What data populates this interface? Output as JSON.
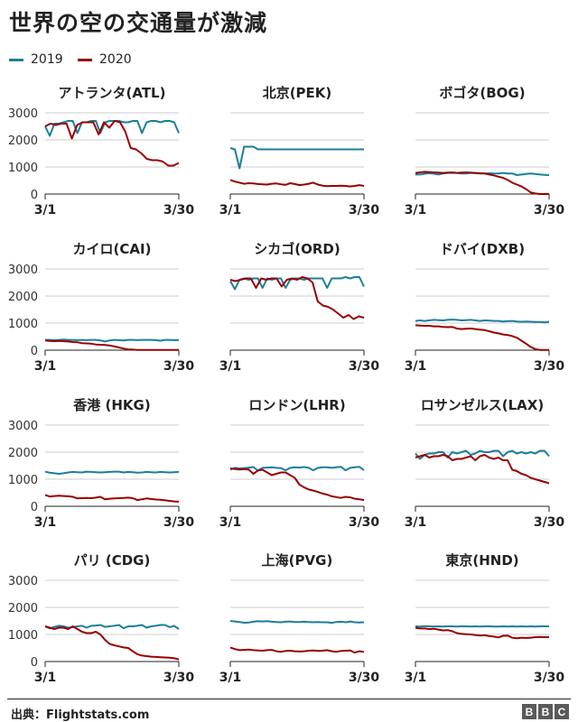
{
  "title": "世界の空の交通量が激減",
  "legend": [
    {
      "label": "2019",
      "color": "#1b7e9a"
    },
    {
      "label": "2020",
      "color": "#990000"
    }
  ],
  "footer": {
    "source": "出典：Flightstats.com",
    "logo": [
      "B",
      "B",
      "C"
    ]
  },
  "chart_data": [
    {
      "type": "line",
      "title": "アトランタ(ATL)",
      "x_labels": [
        "3/1",
        "3/30"
      ],
      "y_ticks": [
        0,
        1000,
        2000,
        3000
      ],
      "ylim": [
        0,
        3000
      ],
      "series": [
        {
          "name": "2019",
          "values": [
            2500,
            2150,
            2600,
            2600,
            2650,
            2700,
            2700,
            2250,
            2650,
            2650,
            2700,
            2700,
            2250,
            2650,
            2700,
            2700,
            2700,
            2650,
            2650,
            2700,
            2700,
            2250,
            2650,
            2700,
            2700,
            2650,
            2700,
            2700,
            2650,
            2250
          ]
        },
        {
          "name": "2020",
          "values": [
            2500,
            2600,
            2550,
            2600,
            2600,
            2050,
            2550,
            2650,
            2650,
            2650,
            2200,
            2650,
            2450,
            2700,
            2650,
            2300,
            1700,
            1650,
            1500,
            1300,
            1250,
            1250,
            1200,
            1050,
            1050,
            1150
          ]
        }
      ]
    },
    {
      "type": "line",
      "title": "北京(PEK)",
      "x_labels": [
        "3/1",
        "3/30"
      ],
      "y_ticks": [
        0,
        1000,
        2000,
        3000
      ],
      "ylim": [
        0,
        3000
      ],
      "series": [
        {
          "name": "2019",
          "values": [
            1700,
            1650,
            950,
            1750,
            1750,
            1750,
            1650,
            1650,
            1650,
            1650,
            1650,
            1650,
            1650,
            1650,
            1650,
            1650,
            1650,
            1650,
            1650,
            1650,
            1650,
            1650,
            1650,
            1650,
            1650,
            1650,
            1650,
            1650,
            1650,
            1650
          ]
        },
        {
          "name": "2020",
          "values": [
            520,
            460,
            420,
            380,
            400,
            390,
            370,
            360,
            350,
            380,
            390,
            360,
            340,
            400,
            370,
            330,
            350,
            380,
            420,
            350,
            310,
            290,
            300,
            300,
            310,
            300,
            280,
            300,
            330,
            300
          ]
        }
      ]
    },
    {
      "type": "line",
      "title": "ボゴタ(BOG)",
      "x_labels": [
        "3/1",
        "3/30"
      ],
      "y_ticks": [
        0,
        1000,
        2000,
        3000
      ],
      "ylim": [
        0,
        3000
      ],
      "series": [
        {
          "name": "2019",
          "values": [
            720,
            720,
            750,
            770,
            750,
            720,
            760,
            780,
            780,
            780,
            760,
            760,
            780,
            770,
            760,
            760,
            770,
            760,
            760,
            780,
            760,
            760,
            700,
            720,
            740,
            760,
            740,
            720,
            710,
            700
          ]
        },
        {
          "name": "2020",
          "values": [
            780,
            800,
            820,
            810,
            800,
            790,
            780,
            790,
            800,
            780,
            790,
            800,
            790,
            780,
            770,
            760,
            720,
            690,
            640,
            600,
            520,
            420,
            350,
            280,
            180,
            60,
            20,
            0,
            0,
            0
          ]
        }
      ]
    },
    {
      "type": "line",
      "title": "カイロ(CAI)",
      "x_labels": [
        "3/1",
        "3/30"
      ],
      "y_ticks": [
        0,
        1000,
        2000,
        3000
      ],
      "ylim": [
        0,
        3000
      ],
      "series": [
        {
          "name": "2019",
          "values": [
            380,
            380,
            370,
            380,
            390,
            380,
            380,
            370,
            380,
            370,
            380,
            380,
            360,
            320,
            360,
            380,
            370,
            360,
            380,
            380,
            370,
            380,
            380,
            380,
            370,
            350,
            380,
            380,
            370,
            370
          ]
        },
        {
          "name": "2020",
          "values": [
            360,
            340,
            330,
            340,
            330,
            320,
            300,
            290,
            260,
            250,
            240,
            210,
            200,
            190,
            170,
            140,
            100,
            60,
            30,
            20,
            10,
            10,
            10,
            10,
            10,
            10,
            10,
            10,
            10,
            10
          ]
        }
      ]
    },
    {
      "type": "line",
      "title": "シカゴ(ORD)",
      "x_labels": [
        "3/1",
        "3/30"
      ],
      "y_ticks": [
        0,
        1000,
        2000,
        3000
      ],
      "ylim": [
        0,
        3000
      ],
      "series": [
        {
          "name": "2019",
          "values": [
            2550,
            2250,
            2600,
            2650,
            2600,
            2650,
            2650,
            2300,
            2650,
            2600,
            2650,
            2650,
            2300,
            2600,
            2650,
            2650,
            2600,
            2650,
            2650,
            2650,
            2650,
            2300,
            2650,
            2650,
            2650,
            2700,
            2650,
            2700,
            2700,
            2350
          ]
        },
        {
          "name": "2020",
          "values": [
            2600,
            2550,
            2600,
            2650,
            2650,
            2300,
            2650,
            2600,
            2650,
            2650,
            2350,
            2600,
            2650,
            2600,
            2700,
            2650,
            2500,
            1800,
            1650,
            1600,
            1500,
            1350,
            1200,
            1300,
            1150,
            1250,
            1200
          ]
        }
      ]
    },
    {
      "type": "line",
      "title": "ドバイ(DXB)",
      "x_labels": [
        "3/1",
        "3/30"
      ],
      "y_ticks": [
        0,
        1000,
        2000,
        3000
      ],
      "ylim": [
        0,
        3000
      ],
      "series": [
        {
          "name": "2019",
          "values": [
            1080,
            1100,
            1080,
            1100,
            1120,
            1110,
            1100,
            1120,
            1130,
            1120,
            1100,
            1110,
            1120,
            1100,
            1080,
            1100,
            1090,
            1080,
            1080,
            1060,
            1070,
            1080,
            1060,
            1050,
            1060,
            1050,
            1040,
            1040,
            1030,
            1050
          ]
        },
        {
          "name": "2020",
          "values": [
            920,
            910,
            900,
            900,
            880,
            880,
            860,
            850,
            860,
            800,
            780,
            790,
            800,
            780,
            760,
            740,
            700,
            650,
            620,
            580,
            560,
            520,
            460,
            350,
            240,
            120,
            40,
            10,
            10,
            10
          ]
        }
      ]
    },
    {
      "type": "line",
      "title": "香港 (HKG)",
      "x_labels": [
        "3/1",
        "3/30"
      ],
      "y_ticks": [
        0,
        1000,
        2000,
        3000
      ],
      "ylim": [
        0,
        3000
      ],
      "series": [
        {
          "name": "2019",
          "values": [
            1280,
            1240,
            1220,
            1200,
            1220,
            1250,
            1270,
            1260,
            1250,
            1280,
            1270,
            1260,
            1250,
            1260,
            1270,
            1280,
            1280,
            1250,
            1270,
            1260,
            1240,
            1250,
            1270,
            1260,
            1250,
            1270,
            1260,
            1250,
            1260,
            1270
          ]
        },
        {
          "name": "2020",
          "values": [
            420,
            360,
            380,
            390,
            380,
            370,
            350,
            290,
            300,
            310,
            300,
            320,
            350,
            260,
            280,
            290,
            300,
            310,
            320,
            300,
            230,
            260,
            290,
            270,
            250,
            240,
            220,
            200,
            180,
            170
          ]
        }
      ]
    },
    {
      "type": "line",
      "title": "ロンドン(LHR)",
      "x_labels": [
        "3/1",
        "3/30"
      ],
      "y_ticks": [
        0,
        1000,
        2000,
        3000
      ],
      "ylim": [
        0,
        3000
      ],
      "series": [
        {
          "name": "2019",
          "values": [
            1350,
            1420,
            1400,
            1410,
            1430,
            1450,
            1320,
            1420,
            1430,
            1440,
            1420,
            1410,
            1330,
            1420,
            1440,
            1430,
            1450,
            1420,
            1330,
            1420,
            1440,
            1440,
            1420,
            1440,
            1460,
            1330,
            1420,
            1440,
            1460,
            1330
          ]
        },
        {
          "name": "2020",
          "values": [
            1400,
            1380,
            1360,
            1370,
            1360,
            1200,
            1320,
            1350,
            1250,
            1150,
            1200,
            1250,
            1250,
            1150,
            1050,
            800,
            700,
            620,
            580,
            530,
            470,
            430,
            370,
            340,
            310,
            350,
            330,
            280,
            260,
            230
          ]
        }
      ]
    },
    {
      "type": "line",
      "title": "ロサンゼルス(LAX)",
      "x_labels": [
        "3/1",
        "3/30"
      ],
      "y_ticks": [
        0,
        1000,
        2000,
        3000
      ],
      "ylim": [
        0,
        3000
      ],
      "series": [
        {
          "name": "2019",
          "values": [
            1950,
            1750,
            1900,
            1950,
            1950,
            2000,
            2000,
            1800,
            2000,
            1950,
            2000,
            2050,
            1900,
            1950,
            2050,
            2000,
            2000,
            2050,
            2050,
            1850,
            2000,
            2050,
            1950,
            2000,
            1950,
            2000,
            1950,
            2050,
            2050,
            1850
          ]
        },
        {
          "name": "2020",
          "values": [
            1800,
            1850,
            1900,
            1800,
            1850,
            1850,
            1900,
            1850,
            1700,
            1750,
            1750,
            1800,
            1850,
            1700,
            1850,
            1900,
            1800,
            1750,
            1800,
            1700,
            1700,
            1350,
            1300,
            1200,
            1150,
            1050,
            1000,
            950,
            900,
            850
          ]
        }
      ]
    },
    {
      "type": "line",
      "title": "パリ (CDG)",
      "x_labels": [
        "3/1",
        "3/30"
      ],
      "y_ticks": [
        0,
        1000,
        2000,
        3000
      ],
      "ylim": [
        0,
        3000
      ],
      "series": [
        {
          "name": "2019",
          "values": [
            1300,
            1220,
            1280,
            1320,
            1300,
            1250,
            1270,
            1300,
            1320,
            1250,
            1320,
            1330,
            1350,
            1280,
            1300,
            1320,
            1350,
            1230,
            1300,
            1300,
            1320,
            1350,
            1250,
            1300,
            1320,
            1350,
            1350,
            1270,
            1320,
            1200
          ]
        },
        {
          "name": "2020",
          "values": [
            1300,
            1250,
            1200,
            1250,
            1250,
            1200,
            1300,
            1200,
            1100,
            1050,
            1050,
            1100,
            1000,
            800,
            650,
            600,
            560,
            520,
            500,
            380,
            270,
            220,
            200,
            180,
            170,
            160,
            150,
            140,
            120,
            80
          ]
        }
      ]
    },
    {
      "type": "line",
      "title": "上海(PVG)",
      "x_labels": [
        "3/1",
        "3/30"
      ],
      "y_ticks": [
        0,
        1000,
        2000,
        3000
      ],
      "ylim": [
        0,
        3000
      ],
      "series": [
        {
          "name": "2019",
          "values": [
            1500,
            1480,
            1460,
            1430,
            1440,
            1470,
            1490,
            1480,
            1490,
            1470,
            1460,
            1450,
            1470,
            1480,
            1460,
            1460,
            1470,
            1460,
            1450,
            1460,
            1450,
            1450,
            1430,
            1460,
            1470,
            1450,
            1480,
            1450,
            1440,
            1450
          ]
        },
        {
          "name": "2020",
          "values": [
            520,
            460,
            420,
            430,
            440,
            420,
            410,
            400,
            420,
            430,
            380,
            360,
            390,
            400,
            380,
            370,
            380,
            400,
            410,
            390,
            400,
            420,
            380,
            360,
            390,
            400,
            410,
            330,
            380,
            360
          ]
        }
      ]
    },
    {
      "type": "line",
      "title": "東京(HND)",
      "x_labels": [
        "3/1",
        "3/30"
      ],
      "y_ticks": [
        0,
        1000,
        2000,
        3000
      ],
      "ylim": [
        0,
        3000
      ],
      "series": [
        {
          "name": "2019",
          "values": [
            1300,
            1290,
            1310,
            1300,
            1290,
            1300,
            1290,
            1300,
            1300,
            1290,
            1300,
            1300,
            1290,
            1300,
            1290,
            1300,
            1300,
            1290,
            1290,
            1300,
            1290,
            1300,
            1290,
            1300,
            1290,
            1300,
            1290,
            1300,
            1300,
            1300
          ]
        },
        {
          "name": "2020",
          "values": [
            1250,
            1220,
            1220,
            1200,
            1210,
            1180,
            1150,
            1160,
            1120,
            1050,
            1020,
            1010,
            1000,
            980,
            960,
            970,
            940,
            920,
            890,
            950,
            960,
            880,
            860,
            880,
            870,
            880,
            900,
            910,
            900,
            900
          ]
        }
      ]
    }
  ]
}
